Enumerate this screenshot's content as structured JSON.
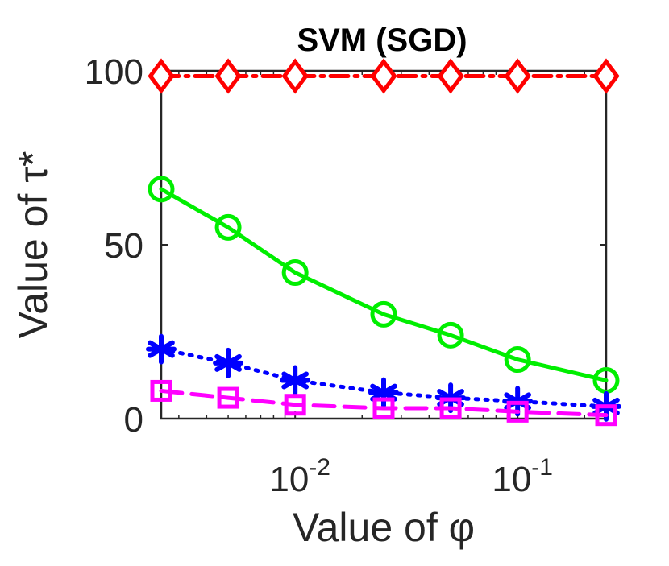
{
  "chart_data": {
    "type": "line",
    "title": "SVM (SGD)",
    "xlabel": "Value of φ",
    "ylabel": "Value of τ*",
    "xscale": "log",
    "xlim": [
      0.0025,
      0.25
    ],
    "ylim": [
      0,
      100
    ],
    "xticks": [
      {
        "base": "10",
        "exp": "-2",
        "value": 0.01
      },
      {
        "base": "10",
        "exp": "-1",
        "value": 0.1
      }
    ],
    "yticks": [
      "0",
      "50",
      "100"
    ],
    "x": [
      0.0025,
      0.005,
      0.01,
      0.025,
      0.05,
      0.1,
      0.25
    ],
    "series": [
      {
        "name": "red-diamond-dashdot",
        "color": "#ff0000",
        "marker": "diamond",
        "dash": "22,8,4,8",
        "values": [
          98.5,
          98.5,
          98.5,
          98.5,
          98.5,
          98.5,
          98.5
        ]
      },
      {
        "name": "green-circle-solid",
        "color": "#00ee00",
        "marker": "circle",
        "dash": "",
        "values": [
          66,
          55,
          42,
          30,
          24,
          17,
          11
        ]
      },
      {
        "name": "blue-asterisk-dotted",
        "color": "#0000ff",
        "marker": "asterisk",
        "dash": "3,9",
        "values": [
          20,
          16,
          11,
          7.5,
          6,
          5,
          3.5
        ]
      },
      {
        "name": "magenta-square-dashed",
        "color": "#ff00ff",
        "marker": "square",
        "dash": "26,12",
        "values": [
          8,
          6,
          4,
          3,
          3,
          2,
          1
        ]
      }
    ]
  }
}
